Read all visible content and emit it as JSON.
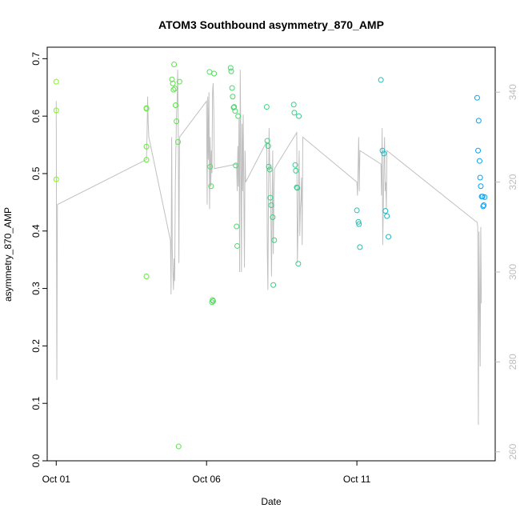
{
  "chart_data": {
    "type": "scatter",
    "title": "ATOM3 Southbound asymmetry_870_AMP",
    "xlabel": "Date",
    "ylabel": "asymmetry_870_AMP",
    "xlim": [
      -0.3,
      14.6
    ],
    "ylim": [
      0.0,
      0.72
    ],
    "y2lim": [
      258,
      350
    ],
    "x_ticks": [
      {
        "label": "Oct 01",
        "value": 0
      },
      {
        "label": "Oct 06",
        "value": 5
      },
      {
        "label": "Oct 11",
        "value": 10
      }
    ],
    "y_ticks": [
      "0.0",
      "0.1",
      "0.2",
      "0.3",
      "0.4",
      "0.5",
      "0.6",
      "0.7"
    ],
    "y2_ticks": [
      "260",
      "280",
      "300",
      "320",
      "340"
    ],
    "x_units": "days since Oct 01",
    "legend": "none",
    "grid": false,
    "point_colors": {
      "start": "#80ff00",
      "end": "#00a0ff"
    },
    "line_color": "#c0c0c0",
    "series": [
      {
        "type": "points",
        "x": [
          0.0,
          0.0,
          0.0,
          3.0,
          3.0,
          3.0,
          3.0,
          3.0,
          3.85,
          3.88,
          3.9,
          3.92,
          3.95,
          3.97,
          4.0,
          4.05,
          4.07,
          4.1,
          5.1,
          5.12,
          5.15,
          5.18,
          5.2,
          5.22,
          5.25,
          5.8,
          5.82,
          5.85,
          5.87,
          5.9,
          5.92,
          5.95,
          5.97,
          6.0,
          6.02,
          6.05,
          7.0,
          7.02,
          7.05,
          7.07,
          7.1,
          7.12,
          7.15,
          7.2,
          7.22,
          7.25,
          7.9,
          7.92,
          7.95,
          7.97,
          8.0,
          8.02,
          8.05,
          8.07,
          10.0,
          10.05,
          10.07,
          10.1,
          10.8,
          10.85,
          10.9,
          10.95,
          11.0,
          11.05,
          14.0,
          14.03,
          14.05,
          14.08,
          14.1,
          14.12,
          14.15,
          14.18,
          14.2,
          14.22,
          14.25
        ],
        "y": [
          0.66,
          0.61,
          0.49,
          0.614,
          0.547,
          0.524,
          0.321,
          0.613,
          0.664,
          0.657,
          0.646,
          0.69,
          0.648,
          0.619,
          0.591,
          0.555,
          0.025,
          0.66,
          0.677,
          0.512,
          0.478,
          0.276,
          0.28,
          0.278,
          0.674,
          0.684,
          0.678,
          0.649,
          0.634,
          0.615,
          0.616,
          0.609,
          0.514,
          0.408,
          0.374,
          0.6,
          0.616,
          0.557,
          0.548,
          0.512,
          0.507,
          0.458,
          0.445,
          0.424,
          0.306,
          0.384,
          0.62,
          0.606,
          0.515,
          0.505,
          0.476,
          0.475,
          0.343,
          0.6,
          0.436,
          0.416,
          0.412,
          0.372,
          0.663,
          0.54,
          0.535,
          0.435,
          0.426,
          0.39,
          0.632,
          0.54,
          0.592,
          0.522,
          0.493,
          0.478,
          0.46,
          0.46,
          0.443,
          0.445,
          0.459
        ]
      },
      {
        "type": "line",
        "axis": "right",
        "x": [
          0.0,
          0.02,
          0.04,
          3.0,
          3.02,
          3.04,
          3.06,
          3.08,
          3.8,
          3.82,
          3.84,
          3.86,
          3.88,
          3.9,
          3.92,
          3.94,
          3.96,
          3.98,
          4.0,
          4.02,
          4.04,
          4.06,
          4.08,
          4.1,
          5.0,
          5.02,
          5.04,
          5.06,
          5.08,
          5.1,
          5.12,
          5.14,
          5.16,
          5.18,
          5.2,
          5.22,
          5.24,
          5.26,
          6.0,
          6.02,
          6.04,
          6.06,
          6.08,
          6.1,
          6.12,
          6.14,
          6.16,
          6.18,
          6.2,
          6.22,
          6.24,
          6.26,
          6.28,
          6.3,
          7.0,
          7.02,
          7.04,
          7.06,
          7.08,
          7.1,
          7.12,
          7.14,
          7.16,
          7.18,
          7.2,
          7.22,
          7.24,
          7.26,
          8.0,
          8.02,
          8.04,
          8.06,
          8.08,
          8.1,
          8.12,
          8.14,
          8.16,
          8.18,
          8.2,
          10.0,
          10.02,
          10.04,
          10.06,
          10.08,
          10.1,
          10.8,
          10.82,
          10.84,
          10.86,
          10.88,
          10.9,
          10.92,
          10.94,
          10.96,
          10.98,
          11.0,
          14.0,
          14.02,
          14.04,
          14.06,
          14.08,
          14.1,
          14.12,
          14.14
        ],
        "y": [
          338,
          276,
          315,
          325,
          330,
          339,
          333,
          330,
          307,
          295,
          330,
          305,
          300,
          296,
          303,
          298,
          318,
          327,
          335,
          338,
          345,
          331,
          302,
          330,
          338,
          315,
          339,
          325,
          340,
          314,
          330,
          319,
          327,
          322,
          340,
          342,
          336,
          323,
          324,
          318,
          328,
          319,
          334,
          300,
          345,
          328,
          300,
          333,
          318,
          335,
          317,
          301,
          327,
          320,
          329,
          305,
          296,
          317,
          332,
          324,
          320,
          313,
          299,
          313,
          327,
          304,
          317,
          323,
          331,
          302,
          309,
          319,
          327,
          308,
          314,
          316,
          321,
          306,
          330,
          320,
          317,
          323,
          330,
          318,
          327,
          324,
          317,
          332,
          306,
          315,
          324,
          330,
          318,
          320,
          314,
          327,
          311,
          310,
          266,
          309,
          293,
          279,
          310,
          293
        ]
      }
    ]
  }
}
